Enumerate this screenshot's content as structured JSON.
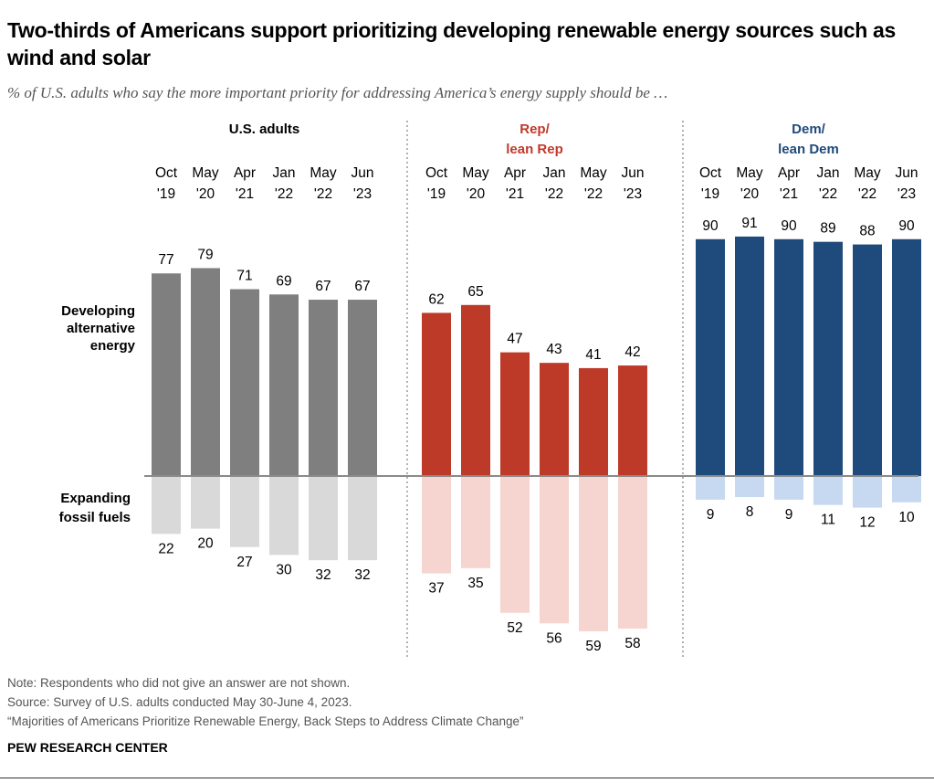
{
  "title": "Two-thirds of Americans support prioritizing developing renewable energy sources such as wind and solar",
  "subtitle": "% of U.S. adults who say the more important priority for addressing America’s energy supply should be …",
  "notes": [
    "Note: Respondents who did not give an answer are not shown.",
    "Source: Survey of U.S. adults conducted May 30-June 4, 2023.",
    "“Majorities of Americans Prioritize Renewable Energy, Back Steps to Address Climate Change”"
  ],
  "brand": "PEW RESEARCH CENTER",
  "chart_data": {
    "type": "bar",
    "categories": [
      [
        "Oct",
        "'19"
      ],
      [
        "May",
        "'20"
      ],
      [
        "Apr",
        "'21"
      ],
      [
        "Jan",
        "'22"
      ],
      [
        "May",
        "'22"
      ],
      [
        "Jun",
        "'23"
      ]
    ],
    "row_labels": {
      "positive": [
        "Developing",
        "alternative",
        "energy"
      ],
      "negative": [
        "Expanding",
        "fossil fuels"
      ]
    },
    "panels": [
      {
        "title": [
          "U.S. adults"
        ],
        "title_color": "#000000",
        "pos_color": "#7f7f7f",
        "neg_color": "#d9d9d9",
        "developing": [
          77,
          79,
          71,
          69,
          67,
          67
        ],
        "fossil": [
          22,
          20,
          27,
          30,
          32,
          32
        ]
      },
      {
        "title": [
          "Rep/",
          "lean Rep"
        ],
        "title_color": "#c0392b",
        "pos_color": "#bd3a29",
        "neg_color": "#f6d4cf",
        "developing": [
          62,
          65,
          47,
          43,
          41,
          42
        ],
        "fossil": [
          37,
          35,
          52,
          56,
          59,
          58
        ]
      },
      {
        "title": [
          "Dem/",
          "lean Dem"
        ],
        "title_color": "#1f4a7c",
        "pos_color": "#1f4a7c",
        "neg_color": "#c6d9f1",
        "developing": [
          90,
          91,
          90,
          89,
          88,
          90
        ],
        "fossil": [
          9,
          8,
          9,
          11,
          12,
          10
        ]
      }
    ]
  }
}
